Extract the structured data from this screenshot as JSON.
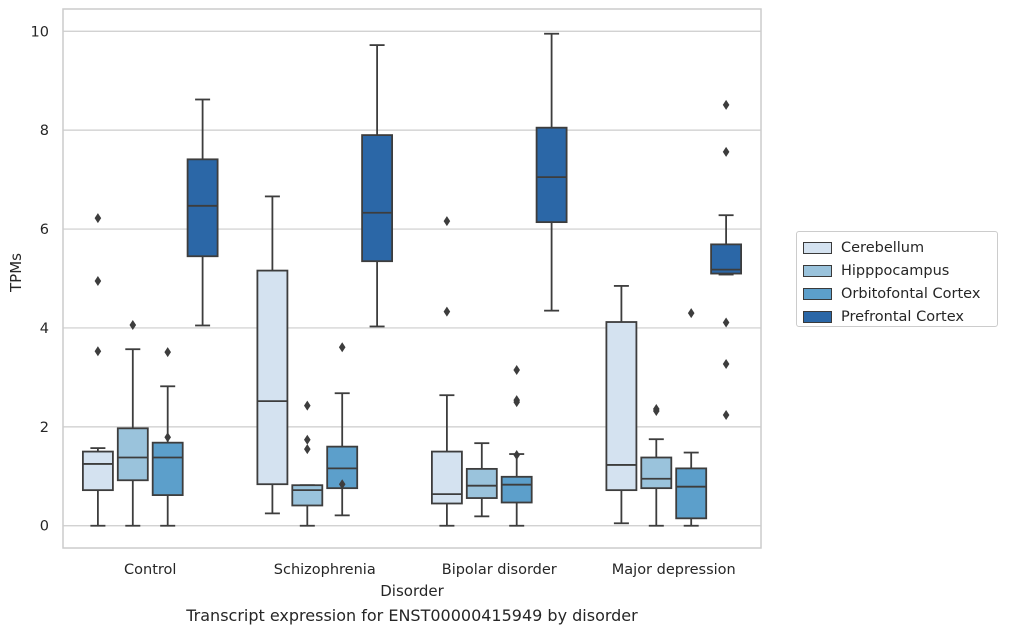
{
  "caption": "Transcript expression for ENST00000415949 by disorder",
  "chart_data": {
    "type": "box",
    "xlabel": "Disorder",
    "ylabel": "TPMs",
    "categories": [
      "Control",
      "Schizophrenia",
      "Bipolar disorder",
      "Major depression"
    ],
    "ylim": [
      -0.45,
      10.45
    ],
    "yticks": [
      "0",
      "2",
      "4",
      "6",
      "8",
      "10"
    ],
    "grid": "horizontal",
    "legend_position": "right",
    "series": [
      {
        "name": "Cerebellum",
        "color": "#d4e2f0",
        "boxes": [
          {
            "whislo": 0.0,
            "q1": 0.72,
            "med": 1.25,
            "q3": 1.5,
            "whishi": 1.57,
            "fliers": [
              6.22,
              4.95,
              3.53
            ]
          },
          {
            "whislo": 0.25,
            "q1": 0.84,
            "med": 2.52,
            "q3": 5.16,
            "whishi": 6.66,
            "fliers": []
          },
          {
            "whislo": 0.0,
            "q1": 0.45,
            "med": 0.64,
            "q3": 1.5,
            "whishi": 2.64,
            "fliers": [
              6.16,
              4.33
            ]
          },
          {
            "whislo": 0.05,
            "q1": 0.72,
            "med": 1.23,
            "q3": 4.12,
            "whishi": 4.85,
            "fliers": []
          }
        ]
      },
      {
        "name": "Hipppocampus",
        "color": "#9ac3dc",
        "boxes": [
          {
            "whislo": 0.0,
            "q1": 0.92,
            "med": 1.38,
            "q3": 1.97,
            "whishi": 3.57,
            "fliers": [
              4.06
            ]
          },
          {
            "whislo": 0.0,
            "q1": 0.41,
            "med": 0.72,
            "q3": 0.82,
            "whishi": 0.82,
            "fliers": [
              2.43,
              1.74,
              1.55
            ]
          },
          {
            "whislo": 0.19,
            "q1": 0.56,
            "med": 0.81,
            "q3": 1.15,
            "whishi": 1.67,
            "fliers": []
          },
          {
            "whislo": 0.0,
            "q1": 0.76,
            "med": 0.95,
            "q3": 1.38,
            "whishi": 1.75,
            "fliers": [
              2.36,
              2.32
            ]
          }
        ]
      },
      {
        "name": "Orbitofontal Cortex",
        "color": "#5c9fcb",
        "boxes": [
          {
            "whislo": 0.0,
            "q1": 0.62,
            "med": 1.38,
            "q3": 1.68,
            "whishi": 2.82,
            "fliers": [
              3.51,
              1.79
            ]
          },
          {
            "whislo": 0.21,
            "q1": 0.76,
            "med": 1.16,
            "q3": 1.6,
            "whishi": 2.68,
            "fliers": [
              3.61,
              0.84
            ]
          },
          {
            "whislo": 0.0,
            "q1": 0.47,
            "med": 0.83,
            "q3": 0.99,
            "whishi": 1.45,
            "fliers": [
              3.15,
              2.54,
              2.5,
              1.43
            ]
          },
          {
            "whislo": 0.0,
            "q1": 0.15,
            "med": 0.79,
            "q3": 1.16,
            "whishi": 1.48,
            "fliers": [
              4.3
            ]
          }
        ]
      },
      {
        "name": "Prefrontal Cortex",
        "color": "#2b67a7",
        "boxes": [
          {
            "whislo": 4.05,
            "q1": 5.45,
            "med": 6.47,
            "q3": 7.41,
            "whishi": 8.62,
            "fliers": []
          },
          {
            "whislo": 4.03,
            "q1": 5.35,
            "med": 6.33,
            "q3": 7.9,
            "whishi": 9.72,
            "fliers": []
          },
          {
            "whislo": 4.35,
            "q1": 6.14,
            "med": 7.05,
            "q3": 8.05,
            "whishi": 9.95,
            "fliers": []
          },
          {
            "whislo": 5.08,
            "q1": 5.1,
            "med": 5.18,
            "q3": 5.69,
            "whishi": 6.28,
            "fliers": [
              8.51,
              7.56,
              4.11,
              3.27,
              2.24
            ]
          }
        ]
      }
    ]
  }
}
